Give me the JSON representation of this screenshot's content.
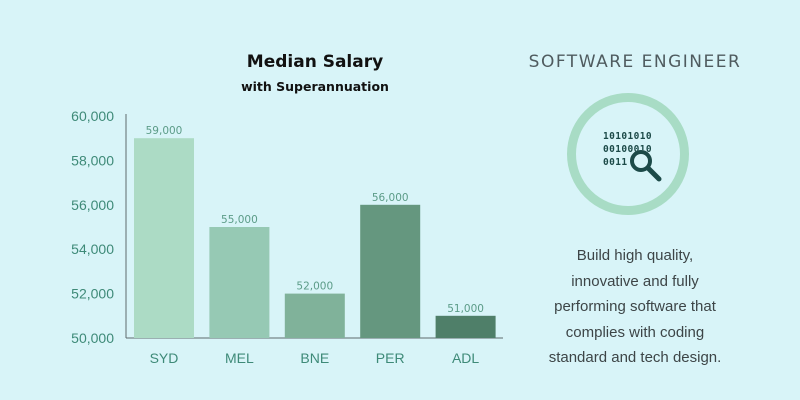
{
  "chart_data": {
    "type": "bar",
    "title": "Median Salary",
    "subtitle": "with Superannuation",
    "categories": [
      "SYD",
      "MEL",
      "BNE",
      "PER",
      "ADL"
    ],
    "values": [
      59000,
      55000,
      52000,
      56000,
      51000
    ],
    "data_labels": [
      "59,000",
      "55,000",
      "52,000",
      "56,000",
      "51,000"
    ],
    "y_ticks": [
      50000,
      52000,
      54000,
      56000,
      58000,
      60000
    ],
    "y_tick_labels": [
      "50,000",
      "52,000",
      "54,000",
      "56,000",
      "58,000",
      "60,000"
    ],
    "ylim": [
      50000,
      60000
    ],
    "bar_colors": [
      "#acdbc5",
      "#96c9b4",
      "#80b29a",
      "#65977f",
      "#4f7f69"
    ],
    "grid": false,
    "legend": "none"
  },
  "side": {
    "title": "SOFTWARE ENGINEER",
    "icon": "binary-magnifier-icon",
    "binary_lines": [
      "10101010",
      "00100010",
      "0011"
    ],
    "description_lines": [
      "Build high quality,",
      "innovative and fully",
      "performing software that",
      "complies with coding",
      "standard and tech design."
    ]
  },
  "colors": {
    "background": "#d8f4f8",
    "ring": "#a8dcc5",
    "icon_dark": "#1c4a48",
    "axis_text": "#3e8a78"
  }
}
